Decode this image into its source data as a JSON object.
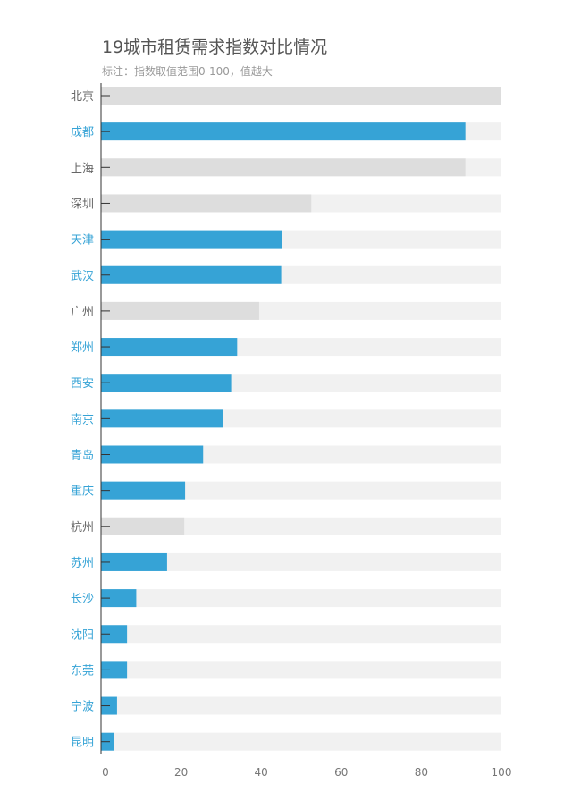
{
  "title": "19城市租赁需求指数对比情况",
  "subtitle": "标注：指数取值范围0-100，值越大",
  "colors": {
    "highlight_bar": "#36a3d6",
    "normal_bar": "#dddddd",
    "track": "#f1f1f1",
    "highlight_label": "#36a3d6",
    "normal_label": "#666666",
    "axis": "#333333",
    "tick_text": "#777777"
  },
  "chart_data": {
    "type": "bar",
    "orientation": "horizontal",
    "title": "19城市租赁需求指数对比情况",
    "subtitle": "标注：指数取值范围0-100，值越大",
    "xlim": [
      0,
      100
    ],
    "x_ticks": [
      0,
      20,
      40,
      60,
      80,
      100
    ],
    "categories": [
      "北京",
      "成都",
      "上海",
      "深圳",
      "天津",
      "武汉",
      "广州",
      "郑州",
      "西安",
      "南京",
      "青岛",
      "重庆",
      "杭州",
      "苏州",
      "长沙",
      "沈阳",
      "东莞",
      "宁波",
      "昆明"
    ],
    "values": [
      100,
      91,
      91,
      52.5,
      45.3,
      45,
      39.5,
      34,
      32.5,
      30.5,
      25.5,
      21,
      20.8,
      16.5,
      8.8,
      6.5,
      6.5,
      4,
      3.2
    ],
    "highlighted": [
      false,
      true,
      false,
      false,
      true,
      true,
      false,
      true,
      true,
      true,
      true,
      true,
      false,
      true,
      true,
      true,
      true,
      true,
      true
    ],
    "grid": false,
    "legend": "none"
  }
}
